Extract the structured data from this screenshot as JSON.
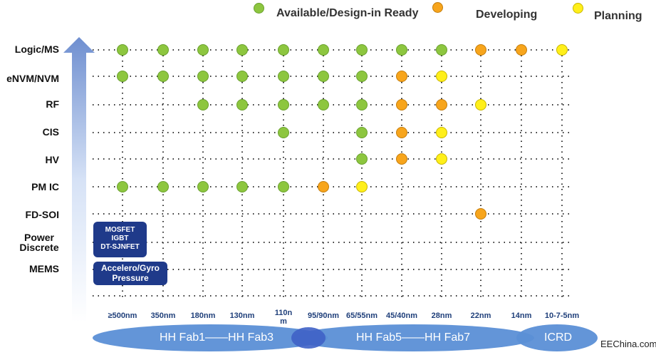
{
  "legend": [
    {
      "label": "Available/Design-in Ready",
      "color": "#8dc63f"
    },
    {
      "label": "Developing",
      "color": "#f7a51c"
    },
    {
      "label": "Planning",
      "color": "#ffef1a"
    }
  ],
  "rows": [
    "Logic/MS",
    "eNVM/NVM",
    "RF",
    "CIS",
    "HV",
    "PM IC",
    "FD-SOI",
    "Power\nDiscrete",
    "MEMS"
  ],
  "columns": [
    "≥500nm",
    "350nm",
    "180nm",
    "130nm",
    "110n\nm",
    "95/90nm",
    "65/55nm",
    "45/40nm",
    "28nm",
    "22nm",
    "14nm",
    "10-7-5nm"
  ],
  "points": [
    {
      "row": 0,
      "col": 0,
      "status": "available"
    },
    {
      "row": 0,
      "col": 1,
      "status": "available"
    },
    {
      "row": 0,
      "col": 2,
      "status": "available"
    },
    {
      "row": 0,
      "col": 3,
      "status": "available"
    },
    {
      "row": 0,
      "col": 4,
      "status": "available"
    },
    {
      "row": 0,
      "col": 5,
      "status": "available"
    },
    {
      "row": 0,
      "col": 6,
      "status": "available"
    },
    {
      "row": 0,
      "col": 7,
      "status": "available"
    },
    {
      "row": 0,
      "col": 8,
      "status": "available"
    },
    {
      "row": 0,
      "col": 9,
      "status": "developing"
    },
    {
      "row": 0,
      "col": 10,
      "status": "developing"
    },
    {
      "row": 0,
      "col": 11,
      "status": "planning"
    },
    {
      "row": 1,
      "col": 0,
      "status": "available"
    },
    {
      "row": 1,
      "col": 1,
      "status": "available"
    },
    {
      "row": 1,
      "col": 2,
      "status": "available"
    },
    {
      "row": 1,
      "col": 3,
      "status": "available"
    },
    {
      "row": 1,
      "col": 4,
      "status": "available"
    },
    {
      "row": 1,
      "col": 5,
      "status": "available"
    },
    {
      "row": 1,
      "col": 6,
      "status": "available"
    },
    {
      "row": 1,
      "col": 7,
      "status": "developing"
    },
    {
      "row": 1,
      "col": 8,
      "status": "planning"
    },
    {
      "row": 2,
      "col": 2,
      "status": "available"
    },
    {
      "row": 2,
      "col": 3,
      "status": "available"
    },
    {
      "row": 2,
      "col": 4,
      "status": "available"
    },
    {
      "row": 2,
      "col": 5,
      "status": "available"
    },
    {
      "row": 2,
      "col": 6,
      "status": "available"
    },
    {
      "row": 2,
      "col": 7,
      "status": "developing"
    },
    {
      "row": 2,
      "col": 8,
      "status": "developing"
    },
    {
      "row": 2,
      "col": 9,
      "status": "planning"
    },
    {
      "row": 3,
      "col": 4,
      "status": "available"
    },
    {
      "row": 3,
      "col": 6,
      "status": "available"
    },
    {
      "row": 3,
      "col": 7,
      "status": "developing"
    },
    {
      "row": 3,
      "col": 8,
      "status": "planning"
    },
    {
      "row": 4,
      "col": 6,
      "status": "available"
    },
    {
      "row": 4,
      "col": 7,
      "status": "developing"
    },
    {
      "row": 4,
      "col": 8,
      "status": "planning"
    },
    {
      "row": 5,
      "col": 0,
      "status": "available"
    },
    {
      "row": 5,
      "col": 1,
      "status": "available"
    },
    {
      "row": 5,
      "col": 2,
      "status": "available"
    },
    {
      "row": 5,
      "col": 3,
      "status": "available"
    },
    {
      "row": 5,
      "col": 4,
      "status": "available"
    },
    {
      "row": 5,
      "col": 5,
      "status": "developing"
    },
    {
      "row": 5,
      "col": 6,
      "status": "planning"
    },
    {
      "row": 6,
      "col": 9,
      "status": "developing"
    }
  ],
  "boxes": {
    "power_discrete": "MOSFET\nIGBT\nDT-SJNFET",
    "mems": "Accelero/Gyro\nPressure"
  },
  "fabs": {
    "fab1": "HH Fab1——HH Fab3",
    "fab5": "HH Fab5——HH Fab7",
    "icrd": "ICRD"
  },
  "watermark": "EEChina.com",
  "colors": {
    "available": "#8dc63f",
    "developing": "#f7a51c",
    "planning": "#ffef1a",
    "box": "#1f3a8a",
    "ellipse": "#5b8fd6",
    "arrow_top": "#6f8fd0"
  }
}
